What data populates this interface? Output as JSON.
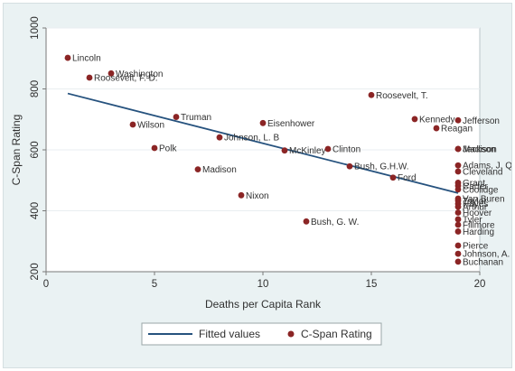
{
  "chart_data": {
    "type": "scatter",
    "title": "",
    "xlabel": "Deaths per Capita Rank",
    "ylabel": "C-Span Rating",
    "xlim": [
      0,
      20
    ],
    "ylim": [
      200,
      1000
    ],
    "x_ticks": [
      0,
      5,
      10,
      15,
      20
    ],
    "y_ticks": [
      200,
      400,
      600,
      800,
      1000
    ],
    "grid": "horizontal",
    "legend_placement": "bottom",
    "series": [
      {
        "name": "C-Span Rating",
        "kind": "points",
        "color": "#8b2525",
        "points": [
          {
            "label": "Lincoln",
            "x": 1,
            "y": 902
          },
          {
            "label": "Washington",
            "x": 3,
            "y": 851
          },
          {
            "label": "Roosevelt, F. D.",
            "x": 2,
            "y": 837
          },
          {
            "label": "Roosevelt, T.",
            "x": 15,
            "y": 780
          },
          {
            "label": "Truman",
            "x": 6,
            "y": 708
          },
          {
            "label": "Kennedy",
            "x": 17,
            "y": 701
          },
          {
            "label": "Jefferson",
            "x": 19,
            "y": 697
          },
          {
            "label": "Eisenhower",
            "x": 10,
            "y": 688
          },
          {
            "label": "Wilson",
            "x": 4,
            "y": 683
          },
          {
            "label": "Reagan",
            "x": 18,
            "y": 671
          },
          {
            "label": "Johnson, L. B",
            "x": 8,
            "y": 641
          },
          {
            "label": "Polk",
            "x": 5,
            "y": 606
          },
          {
            "label": "McKinley",
            "x": 11,
            "y": 598
          },
          {
            "label": "Clinton",
            "x": 13,
            "y": 603
          },
          {
            "label": "Madison",
            "x": 19,
            "y": 603
          },
          {
            "label": "Jackson",
            "x": 19,
            "y": 603
          },
          {
            "label": "Bush, G.H.W.",
            "x": 14,
            "y": 546
          },
          {
            "label": "Adams, J. Q.",
            "x": 19,
            "y": 549
          },
          {
            "label": "Madison",
            "x": 7,
            "y": 536
          },
          {
            "label": "Cleveland",
            "x": 19,
            "y": 529
          },
          {
            "label": "Ford",
            "x": 16,
            "y": 509
          },
          {
            "label": "Grant",
            "x": 19,
            "y": 492
          },
          {
            "label": "Carter",
            "x": 19,
            "y": 482
          },
          {
            "label": "Coolidge",
            "x": 19,
            "y": 470
          },
          {
            "label": "Nixon",
            "x": 9,
            "y": 451
          },
          {
            "label": "Van Buren",
            "x": 19,
            "y": 440
          },
          {
            "label": "Taylor",
            "x": 19,
            "y": 433
          },
          {
            "label": "Hayes",
            "x": 19,
            "y": 423
          },
          {
            "label": "Arthur",
            "x": 19,
            "y": 413
          },
          {
            "label": "Hoover",
            "x": 19,
            "y": 394
          },
          {
            "label": "Tyler",
            "x": 19,
            "y": 372
          },
          {
            "label": "Bush, G. W.",
            "x": 12,
            "y": 365
          },
          {
            "label": "Fillmore",
            "x": 19,
            "y": 354
          },
          {
            "label": "Harding",
            "x": 19,
            "y": 332
          },
          {
            "label": "Pierce",
            "x": 19,
            "y": 286
          },
          {
            "label": "Johnson, A.",
            "x": 19,
            "y": 259
          },
          {
            "label": "Buchanan",
            "x": 19,
            "y": 233
          }
        ]
      },
      {
        "name": "Fitted values",
        "kind": "line",
        "color": "#26527e",
        "x": [
          1,
          19
        ],
        "y": [
          785,
          458
        ]
      }
    ],
    "legend": [
      "Fitted values",
      "C-Span Rating"
    ]
  }
}
